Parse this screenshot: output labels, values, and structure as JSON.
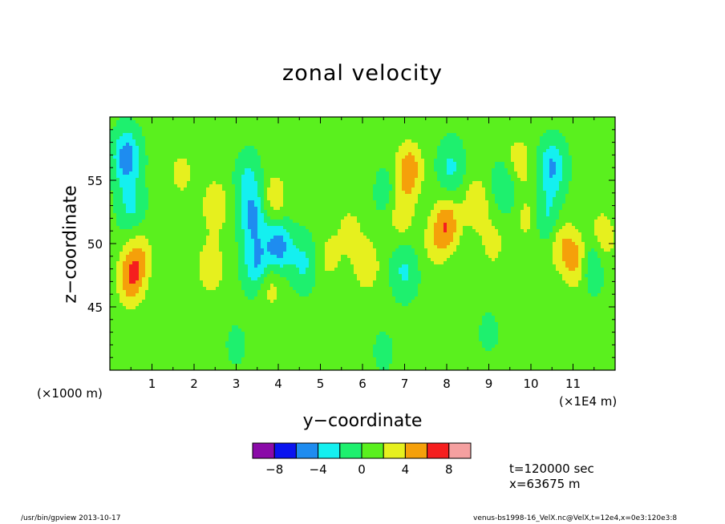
{
  "chart_data": {
    "type": "heatmap",
    "title": "zonal velocity",
    "xlabel": "y−coordinate",
    "ylabel": "z−coordinate",
    "x_scale_note": "(×1E4 m)",
    "y_scale_note": "(×1000 m)",
    "xlim": [
      0,
      12
    ],
    "ylim": [
      40,
      60
    ],
    "x_ticks": [
      1,
      2,
      3,
      4,
      5,
      6,
      7,
      8,
      9,
      10,
      11
    ],
    "y_ticks": [
      45,
      50,
      55
    ],
    "colorbar": {
      "ticks": [
        -8,
        -4,
        0,
        4,
        8
      ],
      "tick_labels": [
        "−8",
        "−4",
        "0",
        "4",
        "8"
      ],
      "levels": [
        -10,
        -8,
        -6,
        -4,
        -2,
        0,
        2,
        4,
        6,
        8,
        10
      ],
      "colors": [
        "#8a0aa8",
        "#0a14f0",
        "#1e8cf0",
        "#14f0f0",
        "#1ef06e",
        "#5af01e",
        "#e6f01e",
        "#f5a00a",
        "#f51e1e",
        "#f5a0a0"
      ]
    },
    "features": [
      {
        "y": 0.4,
        "z": 56.8,
        "value": -6
      },
      {
        "y": 0.5,
        "z": 53.0,
        "value": -3
      },
      {
        "y": 0.7,
        "z": 49.0,
        "value": 3
      },
      {
        "y": 0.5,
        "z": 47.2,
        "value": 5
      },
      {
        "y": 1.7,
        "z": 55.5,
        "value": 2
      },
      {
        "y": 2.5,
        "z": 53.0,
        "value": 3
      },
      {
        "y": 2.4,
        "z": 48.2,
        "value": 3
      },
      {
        "y": 3.3,
        "z": 55.0,
        "value": -3
      },
      {
        "y": 3.4,
        "z": 52.0,
        "value": -5
      },
      {
        "y": 3.5,
        "z": 48.3,
        "value": -5
      },
      {
        "y": 3.9,
        "z": 53.5,
        "value": 3
      },
      {
        "y": 3.8,
        "z": 47.0,
        "value": 3
      },
      {
        "y": 4.0,
        "z": 49.8,
        "value": -6
      },
      {
        "y": 4.6,
        "z": 48.5,
        "value": -3
      },
      {
        "y": 5.2,
        "z": 49.0,
        "value": 2
      },
      {
        "y": 5.7,
        "z": 51.0,
        "value": 2
      },
      {
        "y": 6.1,
        "z": 48.3,
        "value": 3
      },
      {
        "y": 6.6,
        "z": 54.0,
        "value": -2
      },
      {
        "y": 7.1,
        "z": 55.8,
        "value": 5
      },
      {
        "y": 6.9,
        "z": 52.5,
        "value": 3
      },
      {
        "y": 7.0,
        "z": 47.8,
        "value": -3
      },
      {
        "y": 7.7,
        "z": 50.0,
        "value": 2
      },
      {
        "y": 8.0,
        "z": 51.5,
        "value": 5
      },
      {
        "y": 8.1,
        "z": 56.0,
        "value": -3
      },
      {
        "y": 8.7,
        "z": 53.2,
        "value": 3
      },
      {
        "y": 9.1,
        "z": 50.0,
        "value": 2
      },
      {
        "y": 9.4,
        "z": 54.5,
        "value": -3
      },
      {
        "y": 9.7,
        "z": 56.3,
        "value": 3
      },
      {
        "y": 9.9,
        "z": 52.0,
        "value": 2
      },
      {
        "y": 10.5,
        "z": 56.0,
        "value": -5
      },
      {
        "y": 10.4,
        "z": 52.0,
        "value": -3
      },
      {
        "y": 10.7,
        "z": 50.0,
        "value": 3
      },
      {
        "y": 11.1,
        "z": 48.7,
        "value": 5
      },
      {
        "y": 11.4,
        "z": 48.5,
        "value": -4
      },
      {
        "y": 11.7,
        "z": 50.5,
        "value": 3
      },
      {
        "y": 9.0,
        "z": 43.0,
        "value": -1
      },
      {
        "y": 3.0,
        "z": 42.0,
        "value": -1
      },
      {
        "y": 6.5,
        "z": 41.5,
        "value": -1
      }
    ]
  },
  "labels": {
    "title": "zonal velocity",
    "xlabel": "y−coordinate",
    "ylabel": "z−coordinate",
    "x_unit": "(×1E4 m)",
    "y_unit": "(×1000 m)",
    "time": "t=120000 sec",
    "position": "x=63675 m",
    "footer_left": "/usr/bin/gpview  2013-10-17",
    "footer_right": "venus-bs1998-16_VelX.nc@VelX,t=12e4,x=0e3:120e3:8"
  }
}
